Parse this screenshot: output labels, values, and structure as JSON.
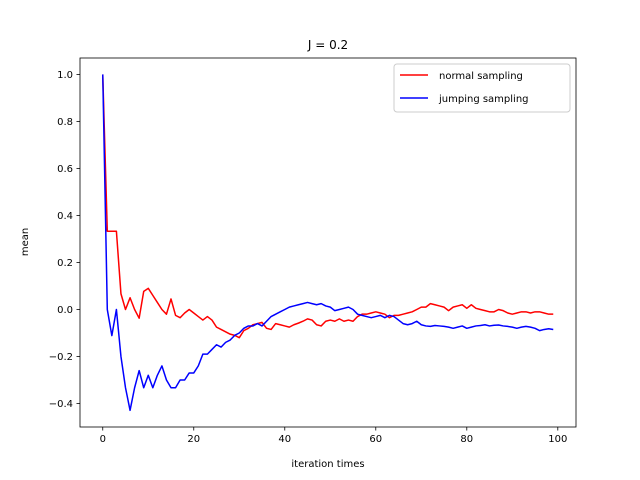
{
  "chart_data": {
    "type": "line",
    "title": "J = 0.2",
    "xlabel": "iteration times",
    "ylabel": "mean",
    "xlim": [
      -5,
      104
    ],
    "ylim": [
      -0.5,
      1.07
    ],
    "xticks": [
      0,
      20,
      40,
      60,
      80,
      100
    ],
    "yticks": [
      -0.4,
      -0.2,
      0.0,
      0.2,
      0.4,
      0.6,
      0.8,
      1.0
    ],
    "xtick_labels": [
      "0",
      "20",
      "40",
      "60",
      "80",
      "100"
    ],
    "ytick_labels": [
      "−0.4",
      "−0.2",
      "0.0",
      "0.2",
      "0.4",
      "0.6",
      "0.8",
      "1.0"
    ],
    "grid": false,
    "legend_position": "top-right",
    "series": [
      {
        "name": "normal sampling",
        "color": "#ff0000",
        "x": [
          0,
          1,
          2,
          3,
          4,
          5,
          6,
          7,
          8,
          9,
          10,
          11,
          12,
          13,
          14,
          15,
          16,
          17,
          18,
          19,
          20,
          21,
          22,
          23,
          24,
          25,
          26,
          27,
          28,
          29,
          30,
          31,
          32,
          33,
          34,
          35,
          36,
          37,
          38,
          39,
          40,
          41,
          42,
          43,
          44,
          45,
          46,
          47,
          48,
          49,
          50,
          51,
          52,
          53,
          54,
          55,
          56,
          57,
          58,
          59,
          60,
          61,
          62,
          63,
          64,
          65,
          66,
          67,
          68,
          69,
          70,
          71,
          72,
          73,
          74,
          75,
          76,
          77,
          78,
          79,
          80,
          81,
          82,
          83,
          84,
          85,
          86,
          87,
          88,
          89,
          90,
          91,
          92,
          93,
          94,
          95,
          96,
          97,
          98,
          99
        ],
        "values": [
          1.0,
          0.333,
          0.333,
          0.333,
          0.067,
          0.0,
          0.05,
          0.0,
          -0.037,
          0.077,
          0.09,
          0.06,
          0.03,
          0.0,
          -0.02,
          0.045,
          -0.025,
          -0.035,
          -0.015,
          0.0,
          -0.015,
          -0.03,
          -0.045,
          -0.03,
          -0.045,
          -0.075,
          -0.085,
          -0.095,
          -0.105,
          -0.11,
          -0.12,
          -0.09,
          -0.08,
          -0.065,
          -0.06,
          -0.055,
          -0.08,
          -0.085,
          -0.06,
          -0.065,
          -0.07,
          -0.075,
          -0.065,
          -0.058,
          -0.05,
          -0.04,
          -0.045,
          -0.065,
          -0.07,
          -0.05,
          -0.045,
          -0.05,
          -0.04,
          -0.05,
          -0.045,
          -0.05,
          -0.03,
          -0.02,
          -0.02,
          -0.015,
          -0.01,
          -0.015,
          -0.02,
          -0.035,
          -0.025,
          -0.025,
          -0.02,
          -0.015,
          -0.01,
          0.0,
          0.01,
          0.01,
          0.025,
          0.02,
          0.015,
          0.01,
          -0.005,
          0.01,
          0.015,
          0.02,
          0.005,
          0.02,
          0.005,
          0.0,
          -0.005,
          -0.01,
          -0.01,
          0.0,
          -0.005,
          -0.015,
          -0.02,
          -0.015,
          -0.01,
          -0.01,
          -0.015,
          -0.01,
          -0.01,
          -0.015,
          -0.02,
          -0.02
        ]
      },
      {
        "name": "jumping sampling",
        "color": "#0000ff",
        "x": [
          0,
          1,
          2,
          3,
          4,
          5,
          6,
          7,
          8,
          9,
          10,
          11,
          12,
          13,
          14,
          15,
          16,
          17,
          18,
          19,
          20,
          21,
          22,
          23,
          24,
          25,
          26,
          27,
          28,
          29,
          30,
          31,
          32,
          33,
          34,
          35,
          36,
          37,
          38,
          39,
          40,
          41,
          42,
          43,
          44,
          45,
          46,
          47,
          48,
          49,
          50,
          51,
          52,
          53,
          54,
          55,
          56,
          57,
          58,
          59,
          60,
          61,
          62,
          63,
          64,
          65,
          66,
          67,
          68,
          69,
          70,
          71,
          72,
          73,
          74,
          75,
          76,
          77,
          78,
          79,
          80,
          81,
          82,
          83,
          84,
          85,
          86,
          87,
          88,
          89,
          90,
          91,
          92,
          93,
          94,
          95,
          96,
          97,
          98,
          99
        ],
        "values": [
          1.0,
          0.0,
          -0.111,
          0.0,
          -0.2,
          -0.333,
          -0.429,
          -0.333,
          -0.26,
          -0.333,
          -0.28,
          -0.333,
          -0.28,
          -0.24,
          -0.3,
          -0.333,
          -0.333,
          -0.3,
          -0.3,
          -0.27,
          -0.27,
          -0.24,
          -0.19,
          -0.19,
          -0.17,
          -0.15,
          -0.16,
          -0.14,
          -0.13,
          -0.11,
          -0.1,
          -0.08,
          -0.07,
          -0.07,
          -0.06,
          -0.07,
          -0.05,
          -0.03,
          -0.02,
          -0.01,
          0.0,
          0.01,
          0.015,
          0.02,
          0.025,
          0.03,
          0.025,
          0.02,
          0.025,
          0.015,
          0.01,
          -0.005,
          0.0,
          0.005,
          0.01,
          0.0,
          -0.02,
          -0.025,
          -0.03,
          -0.035,
          -0.03,
          -0.025,
          -0.035,
          -0.025,
          -0.03,
          -0.045,
          -0.06,
          -0.065,
          -0.06,
          -0.05,
          -0.065,
          -0.07,
          -0.072,
          -0.068,
          -0.07,
          -0.072,
          -0.075,
          -0.08,
          -0.075,
          -0.07,
          -0.08,
          -0.075,
          -0.07,
          -0.068,
          -0.065,
          -0.07,
          -0.067,
          -0.066,
          -0.07,
          -0.072,
          -0.075,
          -0.08,
          -0.075,
          -0.072,
          -0.075,
          -0.08,
          -0.09,
          -0.085,
          -0.082,
          -0.085
        ]
      }
    ]
  }
}
